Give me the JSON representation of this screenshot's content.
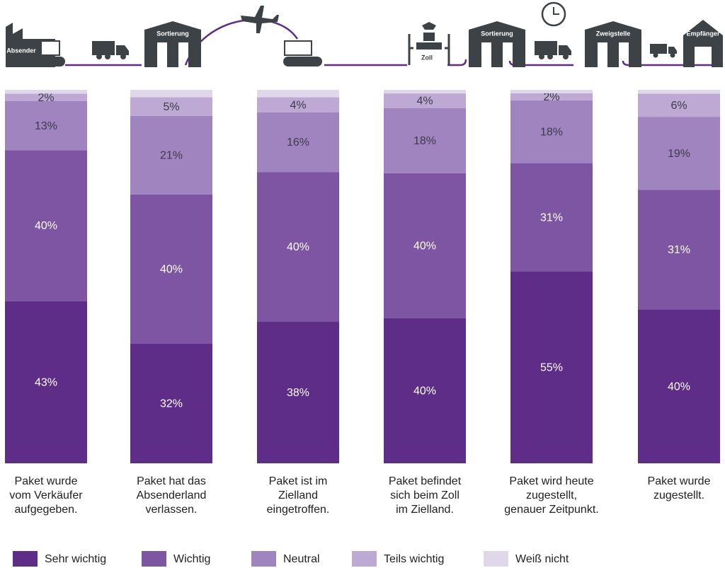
{
  "chart_data": {
    "type": "stacked_bar",
    "route": [
      "Absender",
      "Sortierung",
      "Zoll",
      "Sortierung",
      "Zweigstelle",
      "Empfänger"
    ],
    "categories": [
      [
        "Paket wurde",
        "vom Verkäufer",
        "aufgegeben."
      ],
      [
        "Paket hat das",
        "Absenderland",
        "verlassen."
      ],
      [
        "Paket ist im",
        "Zielland",
        "eingetroffen."
      ],
      [
        "Paket befindet",
        "sich beim Zoll",
        "im Zielland."
      ],
      [
        "Paket wird heute",
        "zugestellt,",
        "genauer Zeitpunkt."
      ],
      [
        "Paket wurde",
        "zugestellt."
      ]
    ],
    "series": [
      {
        "name": "Sehr wichtig",
        "color": "#5e2d87",
        "values": [
          43,
          32,
          38,
          40,
          55,
          40
        ],
        "value_labels": [
          "43%",
          "32%",
          "38%",
          "40%",
          "55%",
          "40%"
        ]
      },
      {
        "name": "Wichtig",
        "color": "#7d55a2",
        "values": [
          40,
          40,
          40,
          40,
          31,
          31
        ],
        "value_labels": [
          "40%",
          "40%",
          "40%",
          "40%",
          "31%",
          "31%"
        ]
      },
      {
        "name": "Neutral",
        "color": "#a084c0",
        "values": [
          13,
          21,
          16,
          18,
          18,
          19
        ],
        "value_labels": [
          "13%",
          "21%",
          "16%",
          "18%",
          "18%",
          "19%"
        ]
      },
      {
        "name": "Teils wichtig",
        "color": "#bea9d4",
        "values": [
          2,
          5,
          4,
          4,
          2,
          6
        ],
        "value_labels": [
          "2%",
          "5%",
          "4%",
          "4%",
          "2%",
          "6%"
        ]
      },
      {
        "name": "Weiß nicht",
        "color": "#e1d7eb",
        "values": [
          1,
          2,
          2,
          1,
          1,
          1
        ]
      }
    ]
  }
}
